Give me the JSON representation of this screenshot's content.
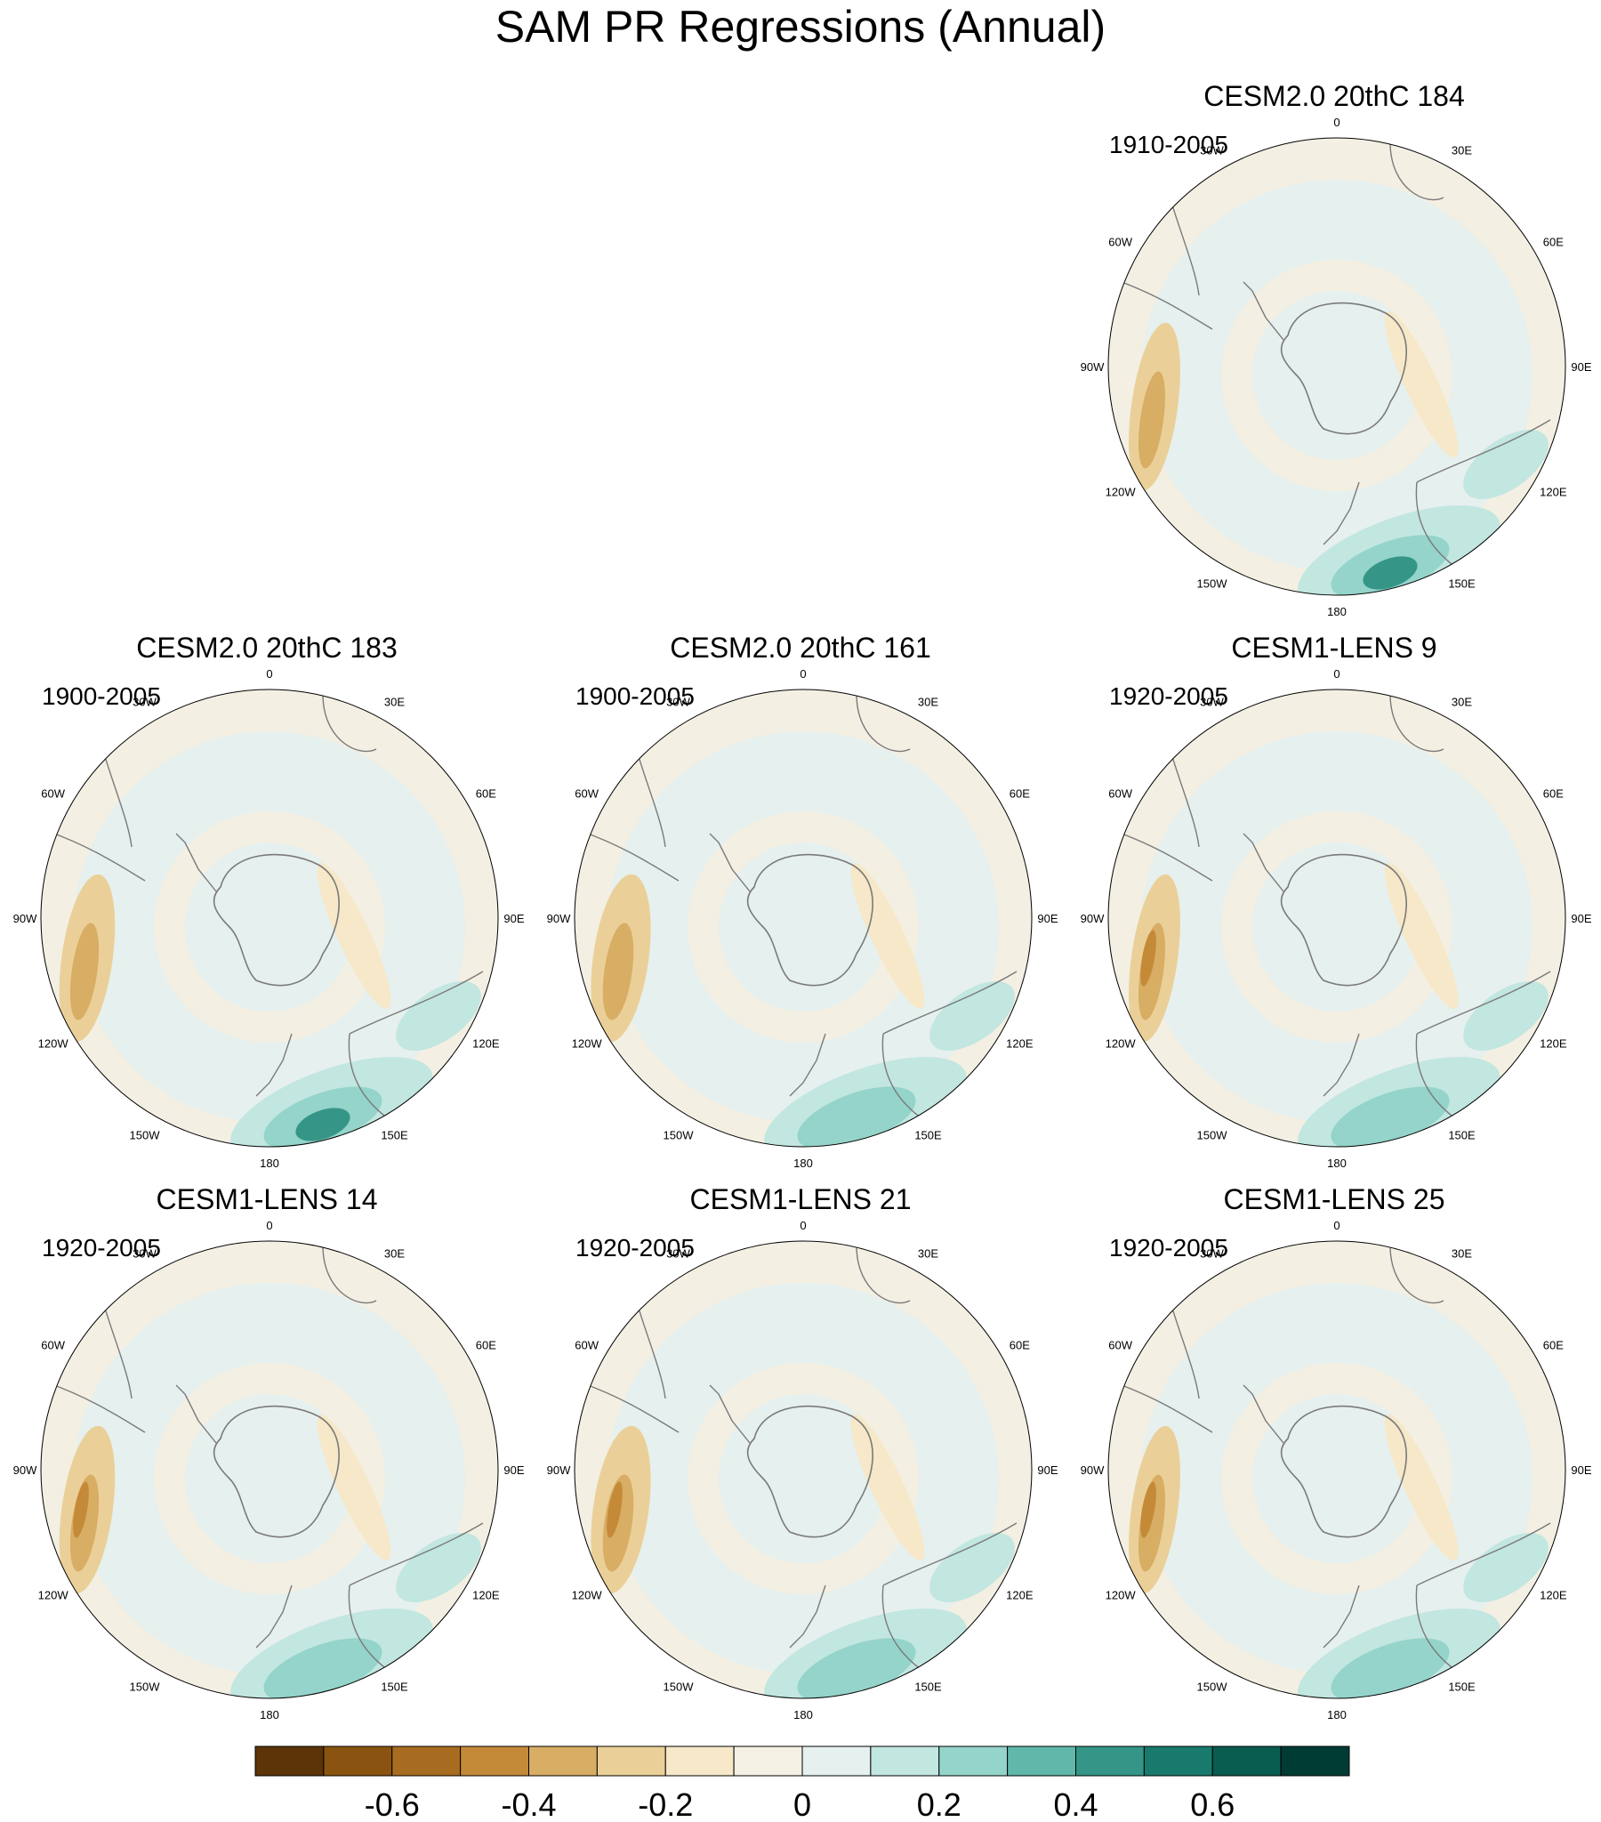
{
  "figure": {
    "title": "SAM PR Regressions (Annual)"
  },
  "panels": [
    {
      "id": "p1",
      "title": "CESM2.0 20thC 184",
      "years": "1910-2005",
      "row": 0,
      "col": 2
    },
    {
      "id": "p2",
      "title": "CESM2.0 20thC 183",
      "years": "1900-2005",
      "row": 1,
      "col": 0
    },
    {
      "id": "p3",
      "title": "CESM2.0 20thC 161",
      "years": "1900-2005",
      "row": 1,
      "col": 1
    },
    {
      "id": "p4",
      "title": "CESM1-LENS 9",
      "years": "1920-2005",
      "row": 1,
      "col": 2
    },
    {
      "id": "p5",
      "title": "CESM1-LENS 14",
      "years": "1920-2005",
      "row": 2,
      "col": 0
    },
    {
      "id": "p6",
      "title": "CESM1-LENS 21",
      "years": "1920-2005",
      "row": 2,
      "col": 1
    },
    {
      "id": "p7",
      "title": "CESM1-LENS 25",
      "years": "1920-2005",
      "row": 2,
      "col": 2
    }
  ],
  "map": {
    "projection": "south-polar-stereographic",
    "longitude_labels": [
      "0",
      "30E",
      "60E",
      "90E",
      "120E",
      "150E",
      "180",
      "150W",
      "120W",
      "90W",
      "60W",
      "30W"
    ],
    "ocean_base_color": "#f3efe3",
    "coast_color": "#7a7a7a"
  },
  "colorbar": {
    "colors": [
      "#5c3408",
      "#8a5410",
      "#a86c20",
      "#c48a38",
      "#d8ad64",
      "#ead098",
      "#f6e8c8",
      "#f4f0e4",
      "#e6f0ee",
      "#c2e6e0",
      "#94d4ca",
      "#60b8aa",
      "#359688",
      "#187a6c",
      "#085c50",
      "#003c34"
    ],
    "tick_labels": [
      "-0.6",
      "-0.4",
      "-0.2",
      "0",
      "0.2",
      "0.4",
      "0.6"
    ]
  }
}
